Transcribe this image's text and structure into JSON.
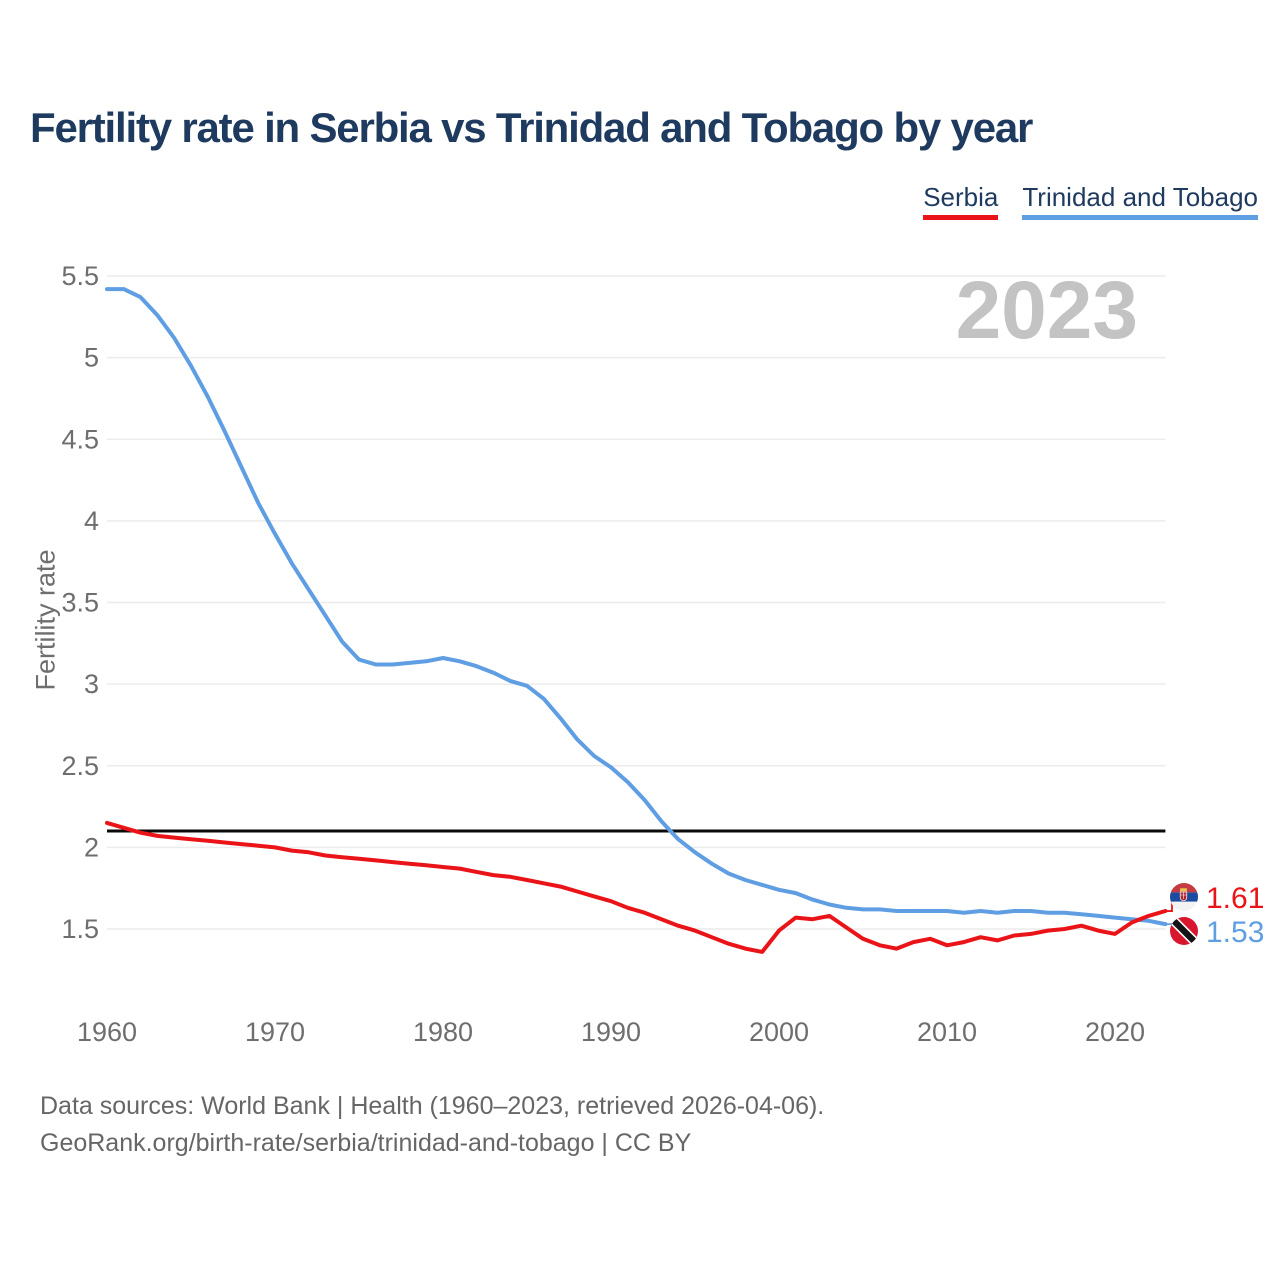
{
  "title": "Fertility rate in Serbia vs Trinidad and Tobago by year",
  "watermark": "2023",
  "y_axis_label": "Fertility rate",
  "footer": {
    "line1": "Data sources: World Bank | Health (1960–2023, retrieved 2026-04-06).",
    "line2": "GeoRank.org/birth-rate/serbia/trinidad-and-tobago | CC BY"
  },
  "colors": {
    "title_navy": "#1e3a5f",
    "serbia_red": "#ea1418",
    "trinidad_blue": "#5f9ee2",
    "reference_line_black": "#0a0a0a",
    "gridline_gray": "#ececec",
    "tick_gray": "#6e6e6e",
    "watermark_gray": "#c3c3c3"
  },
  "chart_data": {
    "type": "line",
    "title": "Fertility rate in Serbia vs Trinidad and Tobago by year",
    "xlabel": "",
    "ylabel": "Fertility rate",
    "grid": "horizontal",
    "legend_position": "top-right",
    "xticks": [
      1960,
      1970,
      1980,
      1990,
      2000,
      2010,
      2020
    ],
    "yticks": [
      1.5,
      2,
      2.5,
      3,
      3.5,
      4,
      4.5,
      5,
      5.5
    ],
    "ylim": [
      1.5,
      5.5
    ],
    "reference_line": 2.1,
    "x_start": 1960,
    "x_end": 2023,
    "years": [
      1960,
      1961,
      1962,
      1963,
      1964,
      1965,
      1966,
      1967,
      1968,
      1969,
      1970,
      1971,
      1972,
      1973,
      1974,
      1975,
      1976,
      1977,
      1978,
      1979,
      1980,
      1981,
      1982,
      1983,
      1984,
      1985,
      1986,
      1987,
      1988,
      1989,
      1990,
      1991,
      1992,
      1993,
      1994,
      1995,
      1996,
      1997,
      1998,
      1999,
      2000,
      2001,
      2002,
      2003,
      2004,
      2005,
      2006,
      2007,
      2008,
      2009,
      2010,
      2011,
      2012,
      2013,
      2014,
      2015,
      2016,
      2017,
      2018,
      2019,
      2020,
      2021,
      2022,
      2023
    ],
    "series": [
      {
        "name": "Serbia",
        "color": "#ea1418",
        "values": [
          2.15,
          2.12,
          2.09,
          2.07,
          2.06,
          2.05,
          2.04,
          2.03,
          2.02,
          2.01,
          2.0,
          1.98,
          1.97,
          1.95,
          1.94,
          1.93,
          1.92,
          1.91,
          1.9,
          1.89,
          1.88,
          1.87,
          1.85,
          1.83,
          1.82,
          1.8,
          1.78,
          1.76,
          1.73,
          1.7,
          1.67,
          1.63,
          1.6,
          1.56,
          1.52,
          1.49,
          1.45,
          1.41,
          1.38,
          1.36,
          1.49,
          1.57,
          1.56,
          1.58,
          1.51,
          1.44,
          1.4,
          1.38,
          1.42,
          1.44,
          1.4,
          1.42,
          1.45,
          1.43,
          1.46,
          1.47,
          1.49,
          1.5,
          1.52,
          1.49,
          1.47,
          1.54,
          1.58,
          1.61
        ]
      },
      {
        "name": "Trinidad and Tobago",
        "color": "#5f9ee2",
        "values": [
          5.42,
          5.42,
          5.37,
          5.26,
          5.12,
          4.95,
          4.76,
          4.55,
          4.33,
          4.11,
          3.92,
          3.74,
          3.58,
          3.42,
          3.26,
          3.15,
          3.12,
          3.12,
          3.13,
          3.14,
          3.16,
          3.14,
          3.11,
          3.07,
          3.02,
          2.99,
          2.91,
          2.79,
          2.66,
          2.56,
          2.49,
          2.4,
          2.29,
          2.16,
          2.05,
          1.97,
          1.9,
          1.84,
          1.8,
          1.77,
          1.74,
          1.72,
          1.68,
          1.65,
          1.63,
          1.62,
          1.62,
          1.61,
          1.61,
          1.61,
          1.61,
          1.6,
          1.61,
          1.6,
          1.61,
          1.61,
          1.6,
          1.6,
          1.59,
          1.58,
          1.57,
          1.56,
          1.55,
          1.53
        ]
      }
    ],
    "end_labels": [
      {
        "name": "Serbia",
        "value": "1.61"
      },
      {
        "name": "Trinidad and Tobago",
        "value": "1.53"
      }
    ]
  }
}
